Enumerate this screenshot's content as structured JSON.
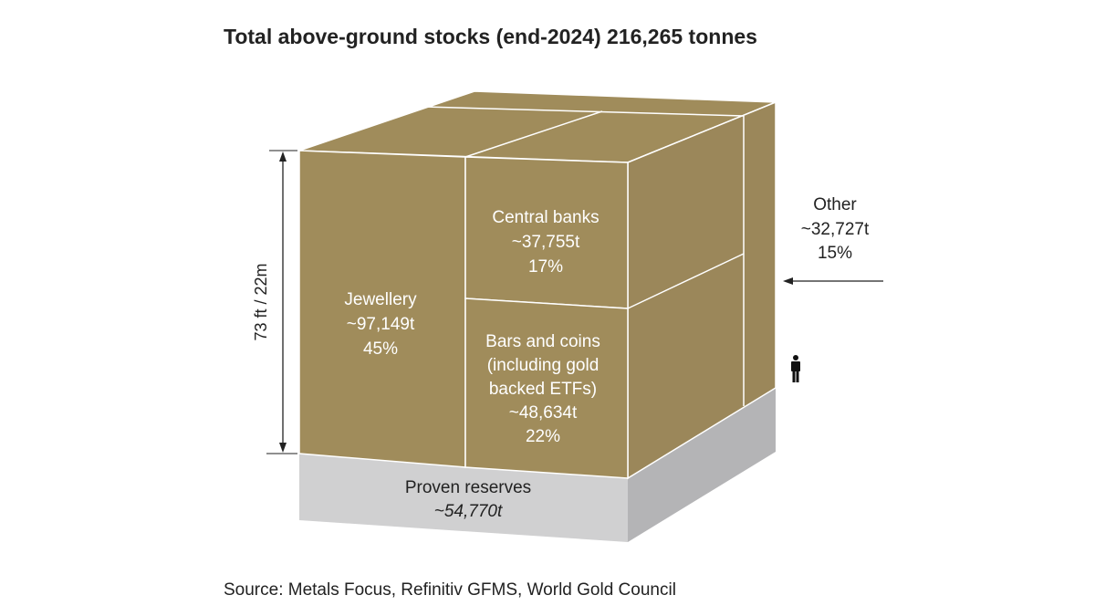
{
  "title": "Total above-ground stocks (end-2024) 216,265 tonnes",
  "height_label": "73 ft / 22m",
  "segments": {
    "jewellery": {
      "label": "Jewellery",
      "amount": "~97,149t",
      "share": "45%"
    },
    "central_banks": {
      "label": "Central banks",
      "amount": "~37,755t",
      "share": "17%"
    },
    "bars_and_coins": {
      "label": [
        "Bars and coins",
        "(including gold",
        "backed ETFs)"
      ],
      "amount": "~48,634t",
      "share": "22%"
    },
    "other": {
      "label": "Other",
      "amount": "~32,727t",
      "share": "15%"
    },
    "proven_reserves": {
      "label": "Proven reserves",
      "amount": "~54,770t"
    }
  },
  "source": "Source: Metals Focus, Refinitiv GFMS, World Gold Council"
}
